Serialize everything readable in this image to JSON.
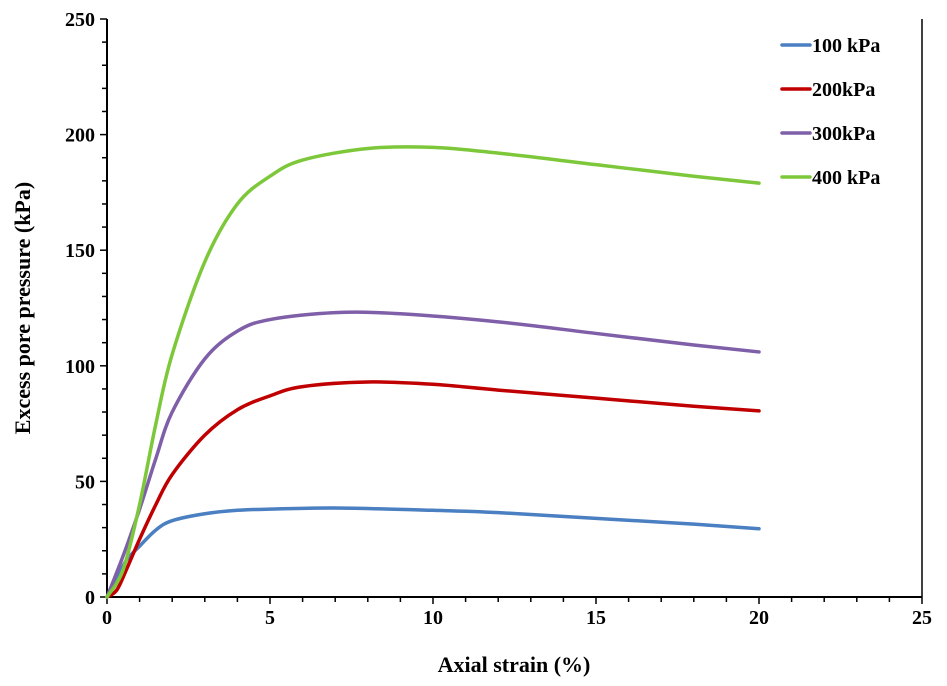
{
  "chart_data": {
    "type": "line",
    "title": "",
    "xlabel": "Axial strain (%)",
    "ylabel": "Excess pore pressure (kPa)",
    "xlim": [
      0,
      25
    ],
    "ylim": [
      0,
      250
    ],
    "xticks": [
      0,
      5,
      10,
      15,
      20,
      25
    ],
    "yticks": [
      0,
      50,
      100,
      150,
      200,
      250
    ],
    "grid": false,
    "legend_position": "top-right",
    "series": [
      {
        "name": "100 kPa",
        "color": "#4a7fc1",
        "x": [
          0,
          0.3,
          0.6,
          1,
          1.5,
          2,
          3,
          4,
          5,
          7,
          10,
          12,
          15,
          18,
          20
        ],
        "y": [
          0,
          8,
          16,
          22,
          29,
          33,
          36,
          37.5,
          38,
          38.5,
          37.5,
          36.5,
          34,
          31.5,
          29.5
        ]
      },
      {
        "name": "200kPa",
        "color": "#c00000",
        "x": [
          0,
          0.3,
          0.6,
          1,
          1.5,
          2,
          3,
          4,
          5,
          6,
          8,
          10,
          12,
          15,
          18,
          20
        ],
        "y": [
          0,
          3,
          12,
          25,
          40,
          53,
          70,
          81,
          87,
          91,
          93,
          92,
          89.5,
          86,
          82.5,
          80.5
        ]
      },
      {
        "name": "300kPa",
        "color": "#7f5fa8",
        "x": [
          0,
          0.5,
          1,
          1.5,
          2,
          3,
          4,
          5,
          7,
          9,
          12,
          15,
          18,
          20
        ],
        "y": [
          0,
          18,
          38,
          60,
          80,
          103,
          115,
          120,
          123,
          122.5,
          119,
          114,
          109,
          106
        ]
      },
      {
        "name": "400 kPa",
        "color": "#7dc83a",
        "x": [
          0,
          0.5,
          1,
          1.5,
          2,
          3,
          4,
          5,
          6,
          8,
          10,
          12,
          15,
          18,
          20
        ],
        "y": [
          0,
          12,
          40,
          75,
          105,
          145,
          170,
          182,
          189,
          194,
          194.5,
          192,
          187,
          182,
          179
        ]
      }
    ]
  }
}
